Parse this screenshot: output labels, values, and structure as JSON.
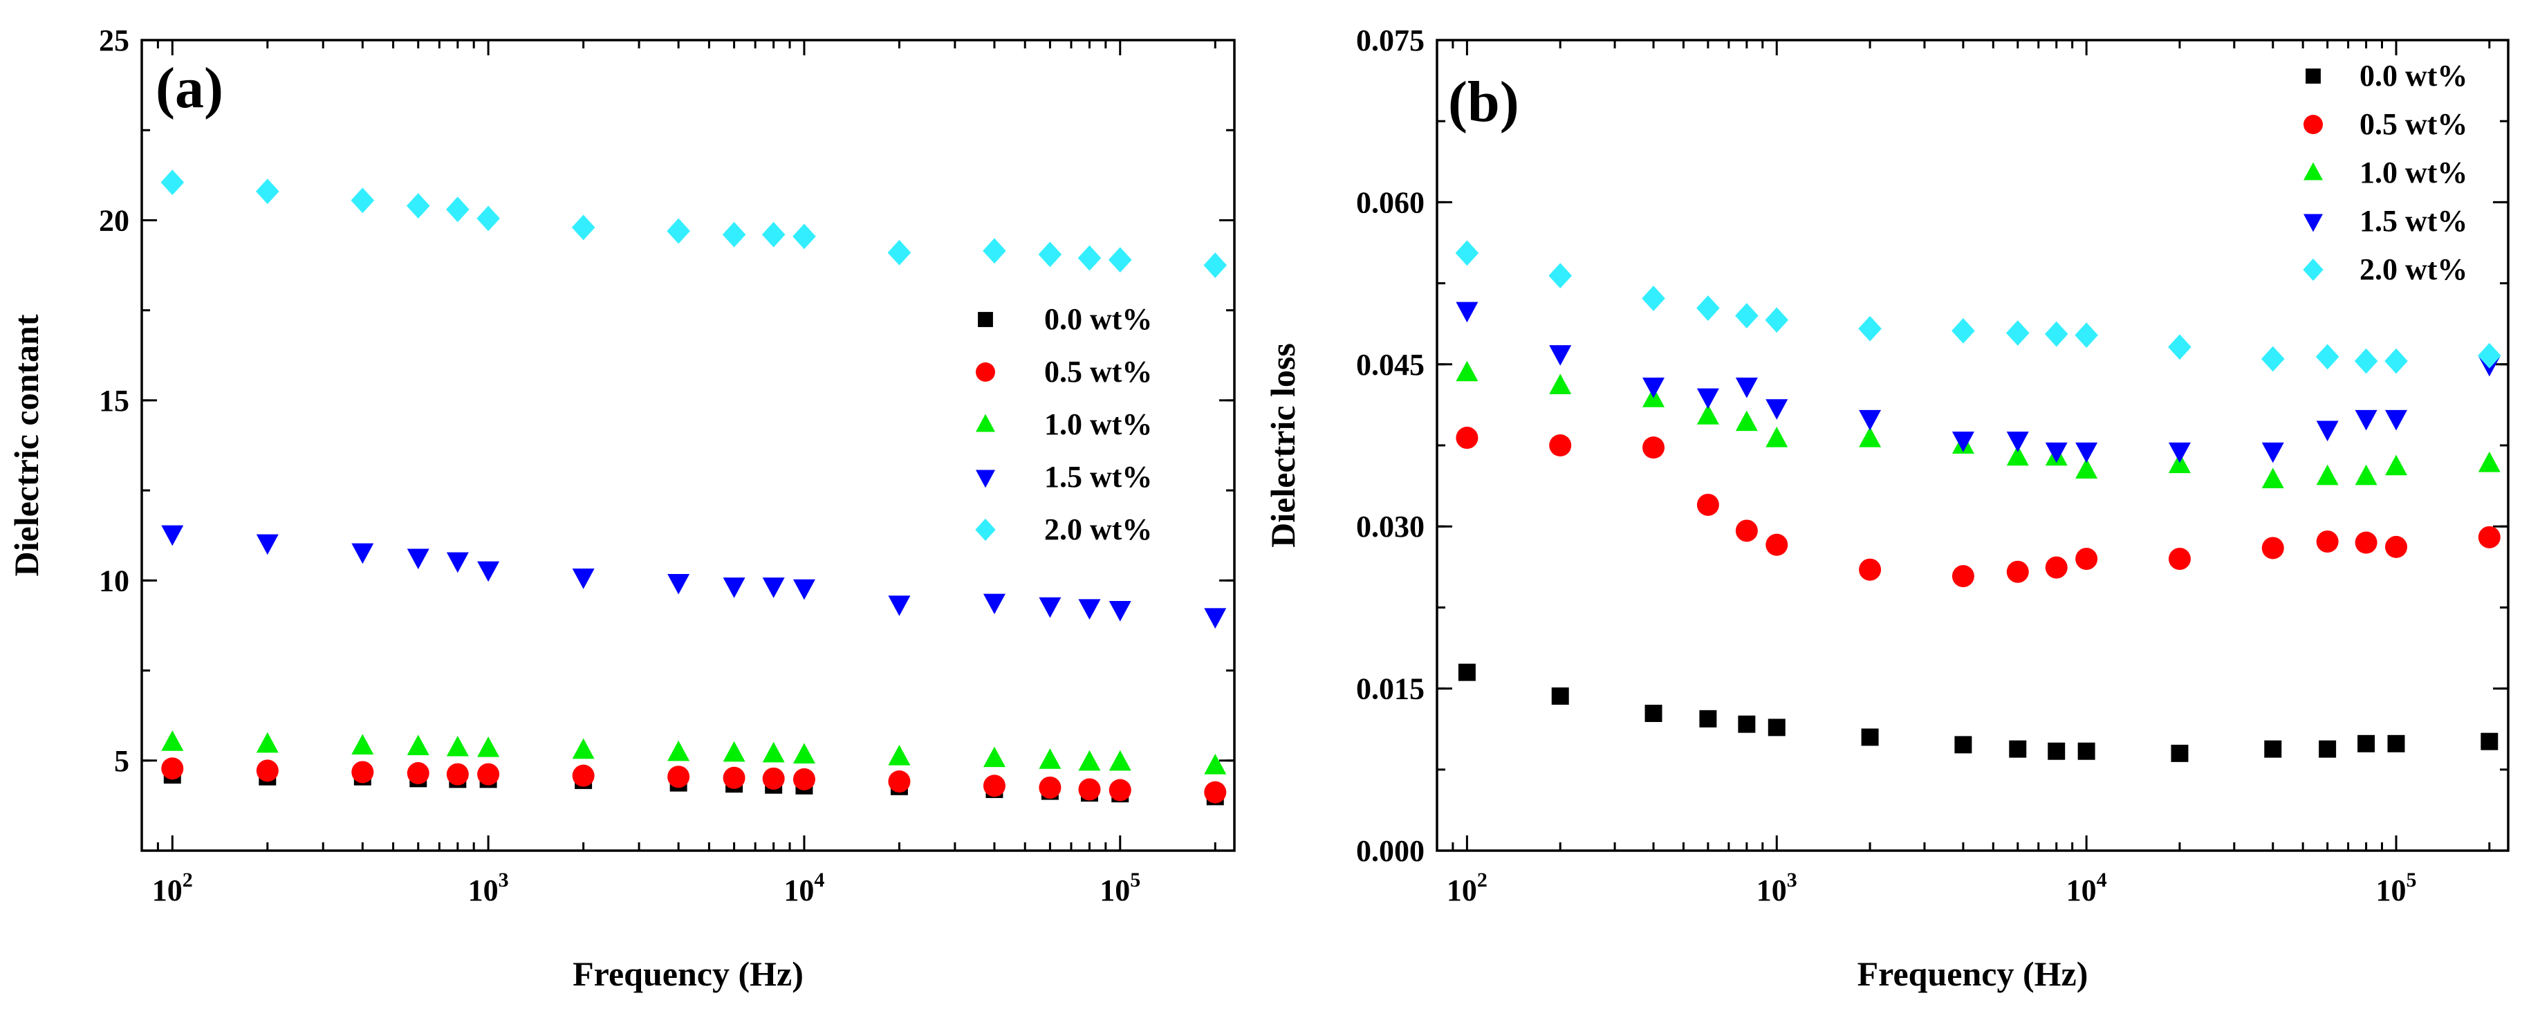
{
  "chart_data": [
    {
      "type": "scatter",
      "panel_label": "(a)",
      "xlabel": "Frequency (Hz)",
      "ylabel": "Dielectric  contant",
      "xscale": "log",
      "xlim": [
        80,
        230000
      ],
      "ylim": [
        2.5,
        25
      ],
      "xticks": [
        {
          "value": 100,
          "base": "10",
          "exp": "2"
        },
        {
          "value": 1000,
          "base": "10",
          "exp": "3"
        },
        {
          "value": 10000,
          "base": "10",
          "exp": "4"
        },
        {
          "value": 100000,
          "base": "10",
          "exp": "5"
        }
      ],
      "yticks": [
        {
          "value": 5,
          "label": "5"
        },
        {
          "value": 10,
          "label": "10"
        },
        {
          "value": 15,
          "label": "15"
        },
        {
          "value": 20,
          "label": "20"
        },
        {
          "value": 25,
          "label": "25"
        }
      ],
      "legend_position": "center-right",
      "x": [
        100,
        200,
        400,
        600,
        800,
        1000,
        2000,
        4000,
        6000,
        8000,
        10000,
        20000,
        40000,
        60000,
        80000,
        100000,
        200000
      ],
      "series": [
        {
          "name": "0.0 wt%",
          "marker": "square",
          "color": "#000000",
          "values": [
            4.6,
            4.55,
            4.55,
            4.5,
            4.48,
            4.48,
            4.45,
            4.38,
            4.35,
            4.32,
            4.3,
            4.28,
            4.2,
            4.15,
            4.1,
            4.08,
            4.0
          ]
        },
        {
          "name": "0.5 wt%",
          "marker": "circle",
          "color": "#ff0000",
          "values": [
            4.78,
            4.72,
            4.68,
            4.65,
            4.62,
            4.62,
            4.58,
            4.55,
            4.52,
            4.5,
            4.48,
            4.42,
            4.3,
            4.25,
            4.2,
            4.18,
            4.12
          ]
        },
        {
          "name": "1.0 wt%",
          "marker": "triangle-up",
          "color": "#00ee00",
          "values": [
            5.5,
            5.45,
            5.4,
            5.38,
            5.35,
            5.33,
            5.28,
            5.22,
            5.2,
            5.18,
            5.15,
            5.1,
            5.05,
            5.0,
            4.95,
            4.95,
            4.85
          ]
        },
        {
          "name": "1.5 wt%",
          "marker": "triangle-down",
          "color": "#0000ff",
          "values": [
            11.3,
            11.05,
            10.8,
            10.65,
            10.55,
            10.3,
            10.1,
            9.95,
            9.85,
            9.85,
            9.8,
            9.35,
            9.4,
            9.3,
            9.25,
            9.2,
            9.0
          ]
        },
        {
          "name": "2.0 wt%",
          "marker": "diamond",
          "color": "#33eeff",
          "values": [
            21.05,
            20.8,
            20.55,
            20.4,
            20.3,
            20.05,
            19.8,
            19.7,
            19.6,
            19.6,
            19.55,
            19.1,
            19.15,
            19.05,
            18.95,
            18.9,
            18.75
          ]
        }
      ]
    },
    {
      "type": "scatter",
      "panel_label": "(b)",
      "xlabel": "Frequency (Hz)",
      "ylabel": "Dielectric loss",
      "xscale": "log",
      "xlim": [
        80,
        230000
      ],
      "ylim": [
        0.0,
        0.075
      ],
      "xticks": [
        {
          "value": 100,
          "base": "10",
          "exp": "2"
        },
        {
          "value": 1000,
          "base": "10",
          "exp": "3"
        },
        {
          "value": 10000,
          "base": "10",
          "exp": "4"
        },
        {
          "value": 100000,
          "base": "10",
          "exp": "5"
        }
      ],
      "yticks": [
        {
          "value": 0.0,
          "label": "0.000"
        },
        {
          "value": 0.015,
          "label": "0.015"
        },
        {
          "value": 0.03,
          "label": "0.030"
        },
        {
          "value": 0.045,
          "label": "0.045"
        },
        {
          "value": 0.06,
          "label": "0.060"
        },
        {
          "value": 0.075,
          "label": "0.075"
        }
      ],
      "legend_position": "top-right",
      "x": [
        100,
        200,
        400,
        600,
        800,
        1000,
        2000,
        4000,
        6000,
        8000,
        10000,
        20000,
        40000,
        60000,
        80000,
        100000,
        200000
      ],
      "series": [
        {
          "name": "0.0 wt%",
          "marker": "square",
          "color": "#000000",
          "values": [
            0.0165,
            0.0143,
            0.0127,
            0.0122,
            0.0117,
            0.0114,
            0.0105,
            0.0098,
            0.0094,
            0.0092,
            0.0092,
            0.009,
            0.0094,
            0.0094,
            0.0099,
            0.0099,
            0.0101
          ]
        },
        {
          "name": "0.5 wt%",
          "marker": "circle",
          "color": "#ff0000",
          "values": [
            0.0382,
            0.0375,
            0.0373,
            0.032,
            0.0296,
            0.0283,
            0.026,
            0.0254,
            0.0258,
            0.0262,
            0.027,
            0.027,
            0.028,
            0.0286,
            0.0285,
            0.0281,
            0.029
          ]
        },
        {
          "name": "1.0 wt%",
          "marker": "triangle-up",
          "color": "#00ee00",
          "values": [
            0.0442,
            0.043,
            0.0418,
            0.0402,
            0.0396,
            0.0381,
            0.0381,
            0.0375,
            0.0364,
            0.0364,
            0.0352,
            0.0357,
            0.0343,
            0.0346,
            0.0346,
            0.0355,
            0.0358
          ]
        },
        {
          "name": "1.5 wt%",
          "marker": "triangle-down",
          "color": "#0000ff",
          "values": [
            0.05,
            0.046,
            0.043,
            0.042,
            0.043,
            0.041,
            0.04,
            0.038,
            0.038,
            0.037,
            0.037,
            0.037,
            0.037,
            0.039,
            0.04,
            0.04,
            0.045
          ]
        },
        {
          "name": "2.0 wt%",
          "marker": "diamond",
          "color": "#33eeff",
          "values": [
            0.0553,
            0.0532,
            0.0511,
            0.0502,
            0.0495,
            0.0491,
            0.0483,
            0.0481,
            0.0479,
            0.0478,
            0.0477,
            0.0466,
            0.0455,
            0.0457,
            0.0453,
            0.0453,
            0.0458
          ]
        }
      ]
    }
  ]
}
